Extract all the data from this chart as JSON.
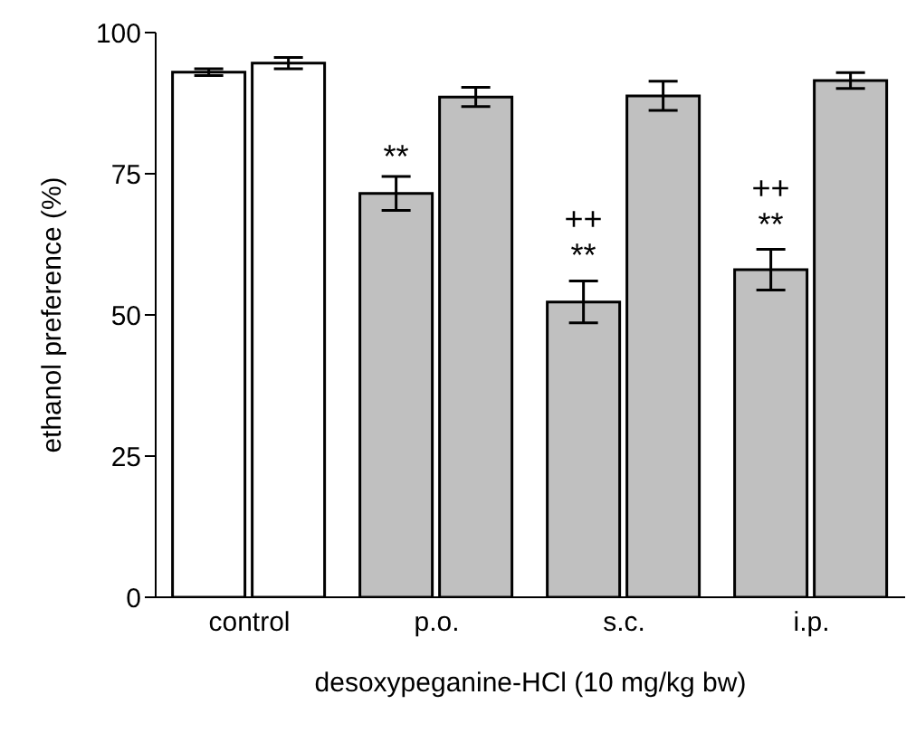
{
  "chart_data": {
    "type": "bar",
    "ylabel": "ethanol preference (%)",
    "xlabel": "desoxypeganine-HCl (10 mg/kg bw)",
    "categories": [
      "control",
      "p.o.",
      "s.c.",
      "i.p."
    ],
    "series": [
      {
        "colors": [
          "#ffffff",
          "#c0c0c0",
          "#c0c0c0",
          "#c0c0c0"
        ],
        "values": [
          93.0,
          71.5,
          52.3,
          58.0
        ],
        "errors": [
          0.6,
          3.0,
          3.7,
          3.6
        ]
      },
      {
        "colors": [
          "#ffffff",
          "#c0c0c0",
          "#c0c0c0",
          "#c0c0c0"
        ],
        "values": [
          94.6,
          88.6,
          88.8,
          91.5
        ],
        "errors": [
          1.0,
          1.7,
          2.6,
          1.4
        ]
      }
    ],
    "ylim": [
      0,
      100
    ],
    "yticks": [
      0,
      25,
      50,
      75,
      100
    ],
    "grid": false,
    "legend": false,
    "annotations": [
      {
        "text": "**",
        "x": "p.o.",
        "y": 78
      },
      {
        "text": "++",
        "x": "s.c.",
        "y": 67
      },
      {
        "text": "**",
        "x": "s.c.",
        "y": 60.5
      },
      {
        "text": "++",
        "x": "i.p.",
        "y": 72.5
      },
      {
        "text": "**",
        "x": "i.p.",
        "y": 66
      }
    ]
  }
}
